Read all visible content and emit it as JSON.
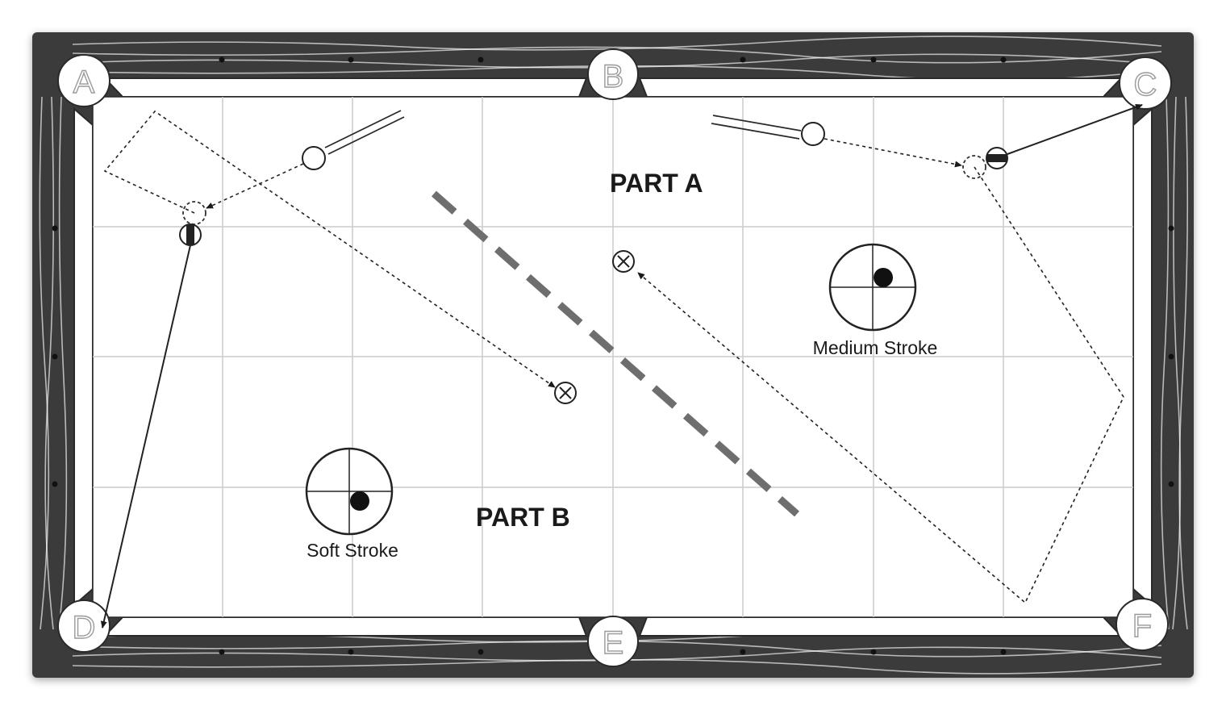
{
  "pockets": {
    "a": "A",
    "b": "B",
    "c": "C",
    "d": "D",
    "e": "E",
    "f": "F"
  },
  "parts": {
    "part_a": "PART A",
    "part_b": "PART B"
  },
  "cue_tips": {
    "medium": "Medium Stroke",
    "soft": "Soft Stroke"
  },
  "colors": {
    "rail_wood": "#3a3a3a",
    "cloth": "#ffffff",
    "grid": "#cccccc",
    "divider": "#6e6e6e",
    "ink": "#1a1a1a"
  },
  "icons": {
    "target": "circled-x-icon",
    "cue_ball": "cue-ball-icon",
    "object_ball": "striped-ball-icon",
    "cue_stick": "cue-stick-icon",
    "english": "cue-tip-crosshair-icon"
  }
}
